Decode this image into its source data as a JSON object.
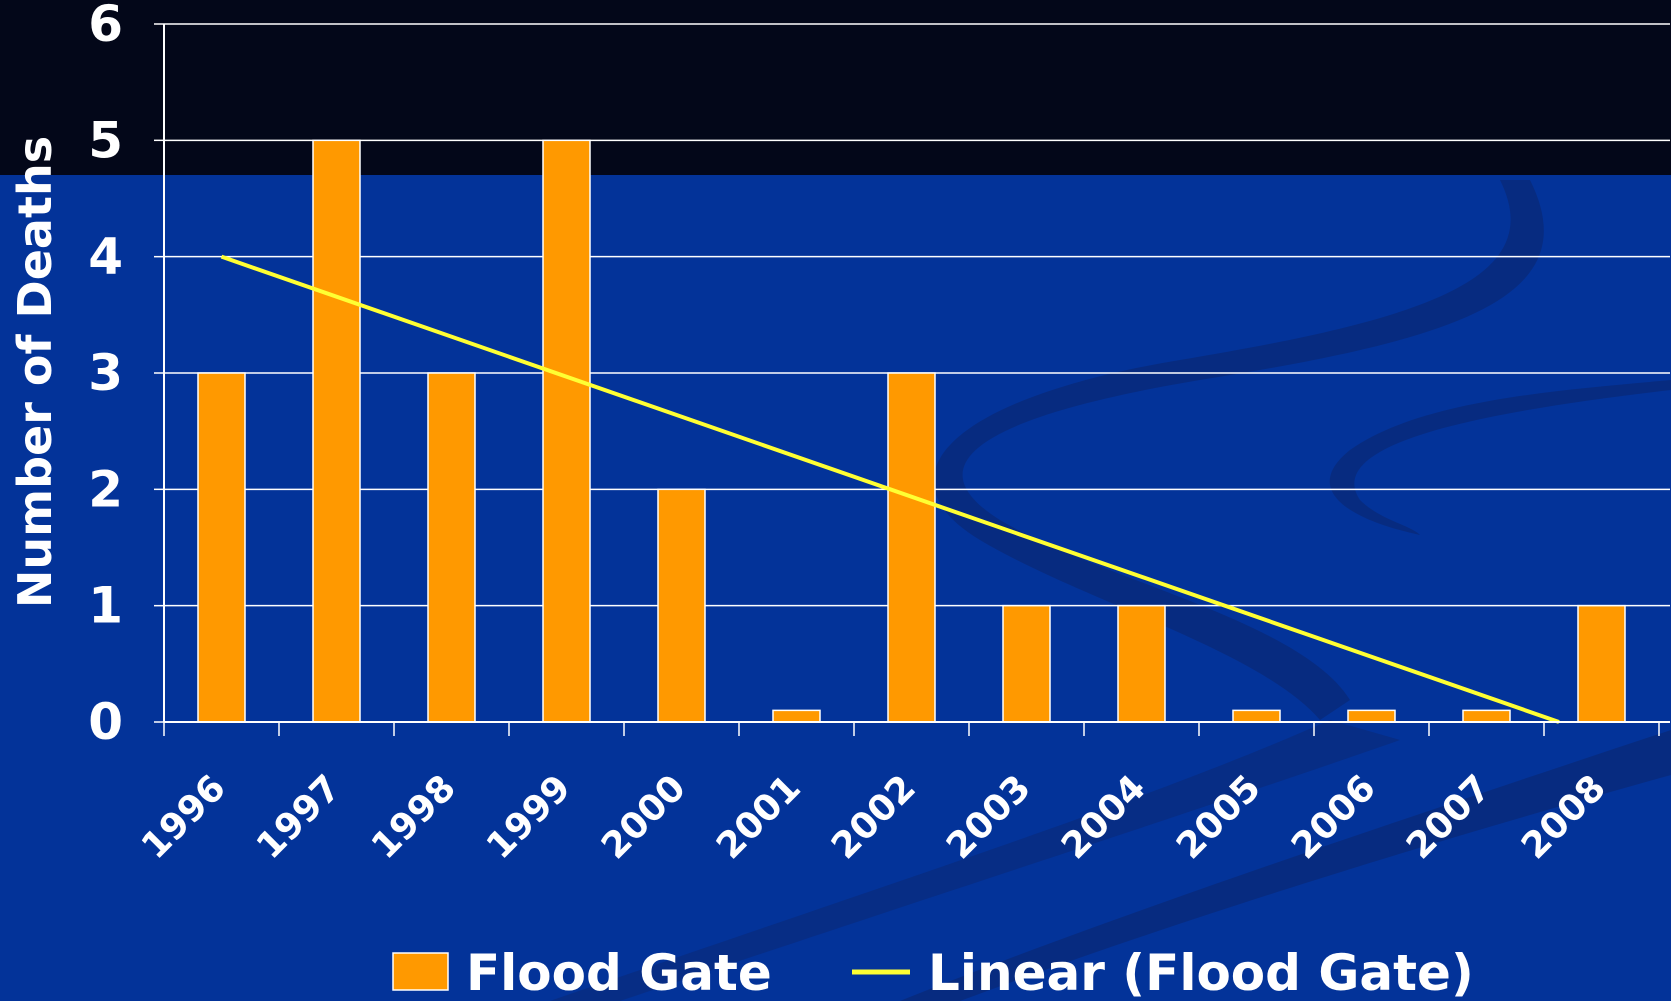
{
  "colors": {
    "background": "#033399",
    "top_band": "#030719",
    "bar_fill": "#ff9900",
    "bar_stroke": "#ffffff",
    "trend_line": "#ffff33",
    "grid": "#ffffff",
    "text": "#ffffff",
    "swoosh": "#0a2a78"
  },
  "chart_data": {
    "type": "bar",
    "title": "",
    "xlabel": "",
    "ylabel": "Number of Deaths",
    "ylim": [
      0,
      6
    ],
    "yticks": [
      "0",
      "1",
      "2",
      "3",
      "4",
      "5",
      "6"
    ],
    "grid": true,
    "legend_position": "bottom",
    "categories": [
      "1996",
      "1997",
      "1998",
      "1999",
      "2000",
      "2001",
      "2002",
      "2003",
      "2004",
      "2005",
      "2006",
      "2007",
      "2008"
    ],
    "series": [
      {
        "name": "Flood Gate",
        "kind": "bar",
        "values": [
          3,
          5,
          3,
          5,
          2,
          0.1,
          3,
          1,
          1,
          0.1,
          0.1,
          0.1,
          1
        ]
      },
      {
        "name": "Linear (Flood Gate)",
        "kind": "trendline",
        "start": {
          "category": "1996",
          "value": 4
        },
        "end": {
          "category": "2008",
          "value": 0
        }
      }
    ]
  }
}
